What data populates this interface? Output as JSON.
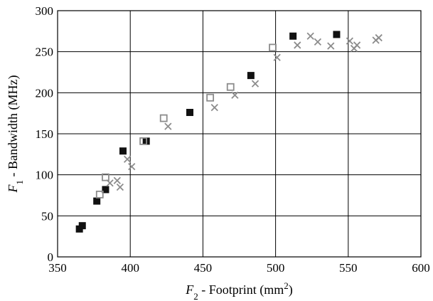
{
  "chart_data": {
    "type": "scatter",
    "title": "",
    "xlabel": {
      "symbol": "F",
      "subscript": "2",
      "text": " - Footprint (mm",
      "superscript": "2",
      "suffix": ")"
    },
    "ylabel": {
      "symbol": "F",
      "subscript": "1",
      "text": " - Bandwidth (MHz)"
    },
    "xlim": [
      350,
      600
    ],
    "ylim": [
      0,
      300
    ],
    "xticks": [
      350,
      400,
      450,
      500,
      550,
      600
    ],
    "yticks": [
      0,
      50,
      100,
      150,
      200,
      250,
      300
    ],
    "grid": true,
    "legend": "none",
    "series": [
      {
        "marker": "filled-square",
        "color": "#111111",
        "points": [
          [
            365,
            34
          ],
          [
            367,
            38
          ],
          [
            377,
            68
          ],
          [
            383,
            82
          ],
          [
            395,
            129
          ],
          [
            411,
            141
          ],
          [
            441,
            176
          ],
          [
            483,
            221
          ],
          [
            512,
            269
          ],
          [
            542,
            271
          ]
        ]
      },
      {
        "marker": "open-square",
        "color": "#8c8c8c",
        "points": [
          [
            379,
            76
          ],
          [
            383,
            97
          ],
          [
            409,
            141
          ],
          [
            423,
            169
          ],
          [
            455,
            194
          ],
          [
            469,
            207
          ],
          [
            498,
            255
          ]
        ]
      },
      {
        "marker": "cross",
        "color": "#8c8c8c",
        "points": [
          [
            386,
            90
          ],
          [
            391,
            93
          ],
          [
            393,
            85
          ],
          [
            398,
            119
          ],
          [
            401,
            110
          ],
          [
            426,
            159
          ],
          [
            458,
            182
          ],
          [
            472,
            197
          ],
          [
            486,
            211
          ],
          [
            501,
            243
          ],
          [
            515,
            258
          ],
          [
            524,
            269
          ],
          [
            529,
            262
          ],
          [
            538,
            257
          ],
          [
            551,
            263
          ],
          [
            554,
            254
          ],
          [
            556,
            258
          ],
          [
            569,
            264
          ],
          [
            571,
            267
          ]
        ]
      }
    ]
  }
}
